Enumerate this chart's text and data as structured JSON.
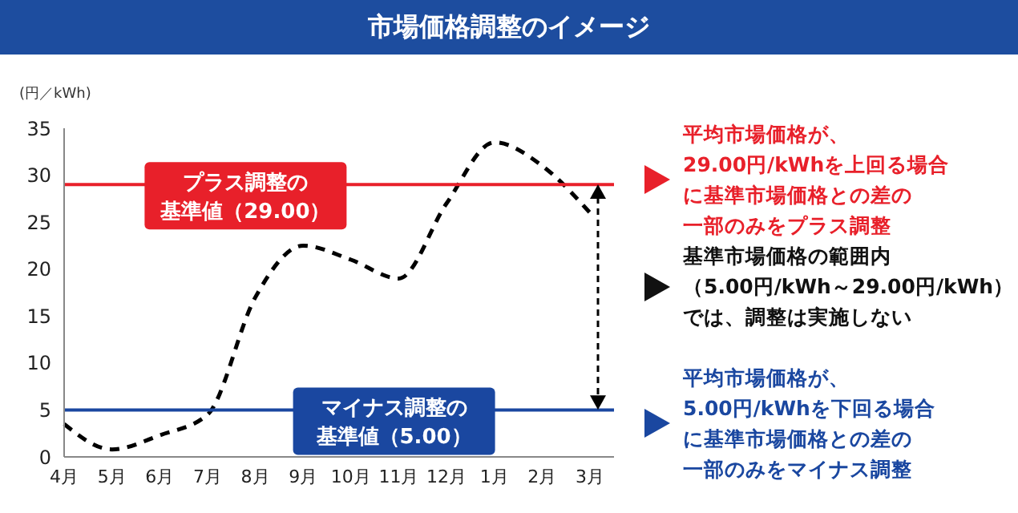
{
  "chart_data": {
    "type": "line",
    "title": "市場価格調整のイメージ",
    "ylabel": "(円／kWh)",
    "categories": [
      "4月",
      "5月",
      "6月",
      "7月",
      "8月",
      "9月",
      "10月",
      "11月",
      "12月",
      "1月",
      "2月",
      "3月"
    ],
    "series": [
      {
        "color": "#000000",
        "values": [
          3.5,
          0.8,
          2.3,
          4.5,
          17,
          22.5,
          21,
          19,
          27,
          33.5,
          31,
          26
        ]
      }
    ],
    "ylim": [
      0,
      35
    ],
    "yticks": [
      0,
      5,
      10,
      15,
      20,
      25,
      30,
      35
    ],
    "grid": false,
    "legend": false,
    "marker": "none",
    "line_style": "dashed",
    "ref_lines": [
      {
        "axis": "y",
        "value": 29,
        "label": "プラス調整の基準値（29.00）",
        "color": "#e8202a"
      },
      {
        "axis": "y",
        "value": 5,
        "label": "マイナス調整の基準値（5.00）",
        "color": "#1a47a0"
      }
    ],
    "annotations": [
      "平均市場価格が、29.00円/kWhを上回る場合に基準市場価格との差の一部のみをプラス調整",
      "基準市場価格の範囲内（5.00円/kWh～29.00円/kWh）では、調整は実施しない",
      "平均市場価格が、5.00円/kWhを下回る場合に基準市場価格との差の一部のみをマイナス調整"
    ]
  }
}
